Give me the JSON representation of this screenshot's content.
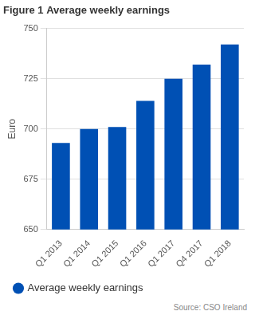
{
  "chart_data": {
    "type": "bar",
    "title": "Figure 1 Average weekly earnings",
    "y_label": "Euro",
    "categories": [
      "Q1 2013",
      "Q1 2014",
      "Q1 2015",
      "Q1 2016",
      "Q1 2017",
      "Q4 2017",
      "Q1 2018"
    ],
    "series": [
      {
        "name": "Average weekly earnings",
        "color": "#0050b4",
        "values": [
          693,
          700,
          701,
          714,
          725,
          732,
          742
        ]
      }
    ],
    "ylim": [
      650,
      750
    ],
    "yticks": [
      650,
      675,
      700,
      725,
      750
    ],
    "grid": true,
    "legend": "bottom",
    "source": "Source: CSO Ireland"
  }
}
